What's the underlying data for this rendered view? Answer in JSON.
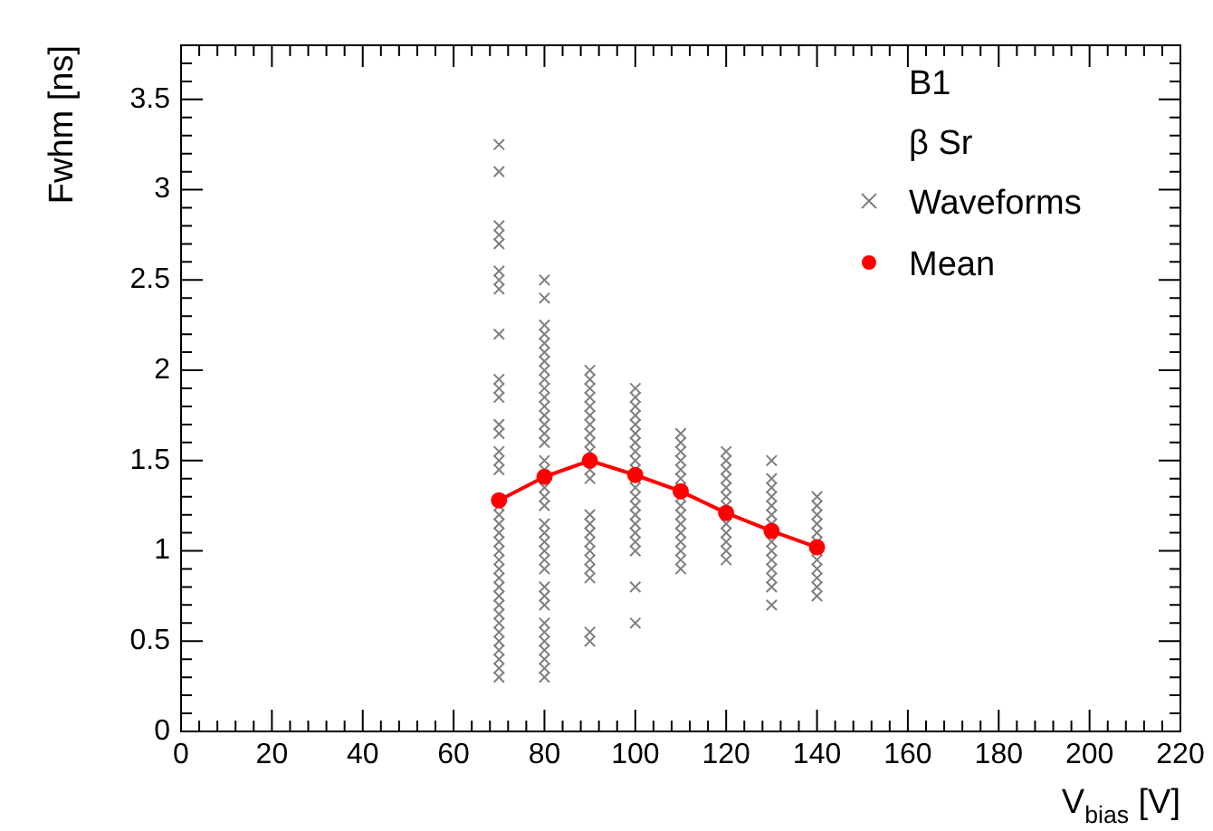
{
  "chart_data": {
    "type": "scatter",
    "xlabel": "V$_{bias}$ [V]",
    "ylabel": "Fwhm [ns]",
    "annotations": [
      "B1",
      "β Sr"
    ],
    "xlim": [
      0,
      220
    ],
    "xticks": [
      0,
      20,
      40,
      60,
      80,
      100,
      120,
      140,
      160,
      180,
      200,
      220
    ],
    "ylim": [
      0,
      3.8
    ],
    "yticks": [
      0,
      0.5,
      1,
      1.5,
      2,
      2.5,
      3,
      3.5
    ],
    "grid": false,
    "legend": "top right",
    "series": [
      {
        "name": "Waveforms",
        "type": "scatter",
        "marker": "cross",
        "color": "#7f7f7f",
        "x": [
          70,
          70,
          70,
          70,
          70,
          70,
          70,
          70,
          70,
          70,
          70,
          70,
          70,
          70,
          70,
          70,
          70,
          70,
          70,
          70,
          70,
          70,
          70,
          70,
          70,
          70,
          70,
          70,
          70,
          70,
          70,
          70,
          70,
          70,
          70,
          70,
          70,
          80,
          80,
          80,
          80,
          80,
          80,
          80,
          80,
          80,
          80,
          80,
          80,
          80,
          80,
          80,
          80,
          80,
          80,
          80,
          80,
          80,
          80,
          80,
          80,
          80,
          80,
          80,
          80,
          80,
          80,
          80,
          80,
          80,
          80,
          80,
          80,
          80,
          90,
          90,
          90,
          90,
          90,
          90,
          90,
          90,
          90,
          90,
          90,
          90,
          90,
          90,
          90,
          90,
          90,
          90,
          90,
          90,
          90,
          90,
          100,
          100,
          100,
          100,
          100,
          100,
          100,
          100,
          100,
          100,
          100,
          100,
          100,
          100,
          100,
          100,
          100,
          100,
          100,
          100,
          100,
          110,
          110,
          110,
          110,
          110,
          110,
          110,
          110,
          110,
          110,
          110,
          110,
          110,
          110,
          110,
          110,
          120,
          120,
          120,
          120,
          120,
          120,
          120,
          120,
          120,
          120,
          120,
          120,
          130,
          130,
          130,
          130,
          130,
          130,
          130,
          130,
          130,
          130,
          130,
          130,
          130,
          130,
          140,
          140,
          140,
          140,
          140,
          140,
          140,
          140,
          140,
          140,
          140,
          140
        ],
        "values": [
          3.25,
          3.1,
          2.8,
          2.75,
          2.7,
          2.55,
          2.5,
          2.45,
          2.2,
          1.95,
          1.9,
          1.85,
          1.7,
          1.65,
          1.55,
          1.5,
          1.45,
          1.25,
          1.2,
          1.15,
          1.1,
          1.05,
          1.0,
          0.95,
          0.9,
          0.85,
          0.8,
          0.75,
          0.7,
          0.65,
          0.6,
          0.55,
          0.5,
          0.45,
          0.4,
          0.35,
          0.3,
          2.5,
          2.4,
          2.25,
          2.2,
          2.15,
          2.1,
          2.05,
          2.0,
          1.95,
          1.9,
          1.85,
          1.8,
          1.75,
          1.7,
          1.65,
          1.6,
          1.5,
          1.45,
          1.35,
          1.3,
          1.25,
          1.15,
          1.1,
          1.05,
          1.0,
          0.95,
          0.9,
          0.8,
          0.75,
          0.7,
          0.6,
          0.55,
          0.5,
          0.45,
          0.4,
          0.35,
          0.3,
          2.0,
          1.95,
          1.9,
          1.85,
          1.8,
          1.75,
          1.7,
          1.65,
          1.6,
          1.55,
          1.45,
          1.4,
          1.2,
          1.15,
          1.1,
          1.05,
          1.0,
          0.95,
          0.9,
          0.85,
          0.55,
          0.5,
          1.9,
          1.85,
          1.8,
          1.75,
          1.7,
          1.65,
          1.6,
          1.55,
          1.5,
          1.45,
          1.4,
          1.35,
          1.3,
          1.25,
          1.2,
          1.15,
          1.1,
          1.05,
          1.0,
          0.8,
          0.6,
          1.65,
          1.6,
          1.55,
          1.5,
          1.45,
          1.4,
          1.35,
          1.3,
          1.25,
          1.2,
          1.15,
          1.1,
          1.05,
          1.0,
          0.95,
          0.9,
          1.55,
          1.5,
          1.45,
          1.4,
          1.35,
          1.3,
          1.25,
          1.15,
          1.1,
          1.05,
          1.0,
          0.95,
          1.5,
          1.4,
          1.35,
          1.3,
          1.25,
          1.2,
          1.15,
          1.05,
          1.0,
          0.95,
          0.9,
          0.85,
          0.8,
          0.7,
          1.3,
          1.25,
          1.2,
          1.15,
          1.1,
          1.05,
          1.0,
          0.95,
          0.9,
          0.85,
          0.8,
          0.75
        ]
      },
      {
        "name": "Mean",
        "type": "line",
        "marker": "circle",
        "line_style": "solid",
        "color": "#ff0000",
        "x": [
          70,
          80,
          90,
          100,
          110,
          120,
          130,
          140
        ],
        "values": [
          1.28,
          1.41,
          1.5,
          1.42,
          1.33,
          1.21,
          1.11,
          1.02
        ]
      }
    ]
  }
}
